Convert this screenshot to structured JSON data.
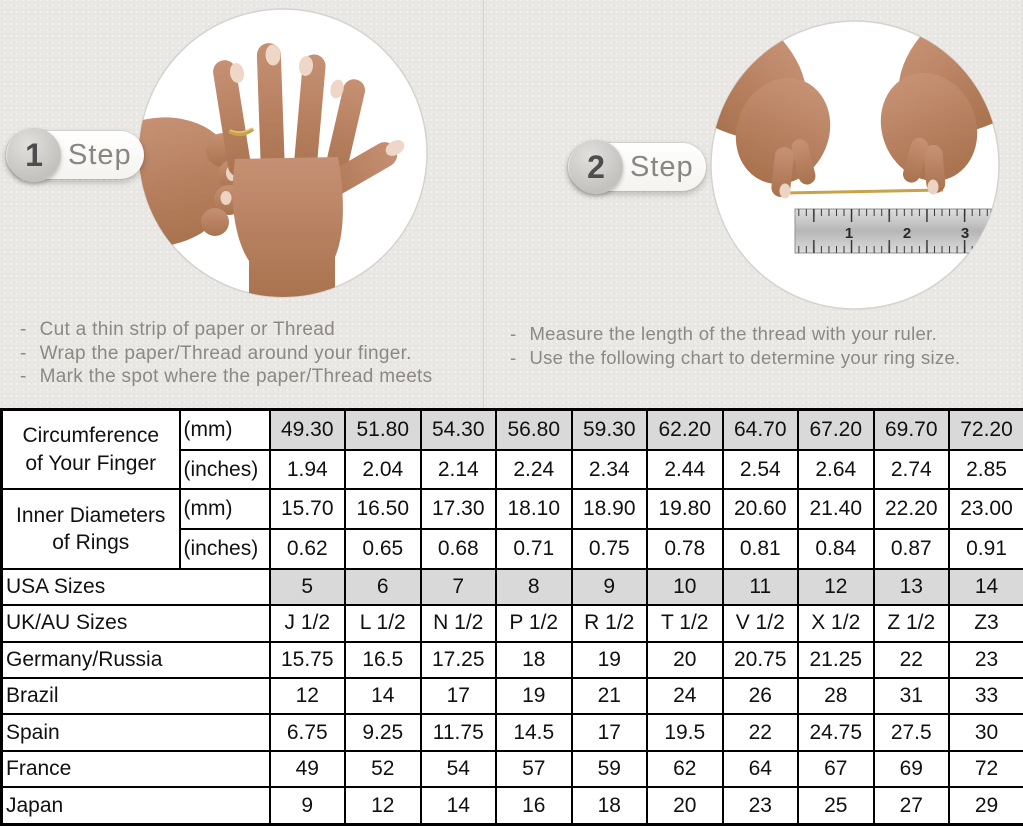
{
  "steps": [
    {
      "number": "1",
      "label": "Step",
      "instructions": [
        "Cut a thin strip of paper or Thread",
        "Wrap the paper/Thread around your finger.",
        "Mark the spot where the paper/Thread meets"
      ]
    },
    {
      "number": "2",
      "label": "Step",
      "instructions": [
        "Measure the length of the thread with your ruler.",
        "Use the following chart to determine your ring size."
      ]
    }
  ],
  "ruler": {
    "numbers": [
      "1",
      "2",
      "3"
    ]
  },
  "size_chart": {
    "row_groups": [
      {
        "label_lines": [
          "Circumference",
          "of Your Finger"
        ],
        "rows": [
          {
            "unit": "(mm)",
            "shaded": true,
            "values": [
              "49.30",
              "51.80",
              "54.30",
              "56.80",
              "59.30",
              "62.20",
              "64.70",
              "67.20",
              "69.70",
              "72.20"
            ]
          },
          {
            "unit": "(inches)",
            "shaded": false,
            "values": [
              "1.94",
              "2.04",
              "2.14",
              "2.24",
              "2.34",
              "2.44",
              "2.54",
              "2.64",
              "2.74",
              "2.85"
            ]
          }
        ]
      },
      {
        "label_lines": [
          "Inner Diameters",
          "of Rings"
        ],
        "rows": [
          {
            "unit": "(mm)",
            "shaded": false,
            "values": [
              "15.70",
              "16.50",
              "17.30",
              "18.10",
              "18.90",
              "19.80",
              "20.60",
              "21.40",
              "22.20",
              "23.00"
            ]
          },
          {
            "unit": "(inches)",
            "shaded": false,
            "values": [
              "0.62",
              "0.65",
              "0.68",
              "0.71",
              "0.75",
              "0.78",
              "0.81",
              "0.84",
              "0.87",
              "0.91"
            ]
          }
        ]
      }
    ],
    "simple_rows": [
      {
        "label": "USA Sizes",
        "shaded": true,
        "values": [
          "5",
          "6",
          "7",
          "8",
          "9",
          "10",
          "11",
          "12",
          "13",
          "14"
        ]
      },
      {
        "label": "UK/AU Sizes",
        "shaded": false,
        "values": [
          "J 1/2",
          "L 1/2",
          "N 1/2",
          "P 1/2",
          "R 1/2",
          "T 1/2",
          "V 1/2",
          "X 1/2",
          "Z 1/2",
          "Z3"
        ]
      },
      {
        "label": "Germany/Russia",
        "shaded": false,
        "values": [
          "15.75",
          "16.5",
          "17.25",
          "18",
          "19",
          "20",
          "20.75",
          "21.25",
          "22",
          "23"
        ]
      },
      {
        "label": "Brazil",
        "shaded": false,
        "values": [
          "12",
          "14",
          "17",
          "19",
          "21",
          "24",
          "26",
          "28",
          "31",
          "33"
        ]
      },
      {
        "label": "Spain",
        "shaded": false,
        "values": [
          "6.75",
          "9.25",
          "11.75",
          "14.5",
          "17",
          "19.5",
          "22",
          "24.75",
          "27.5",
          "30"
        ]
      },
      {
        "label": "France",
        "shaded": false,
        "values": [
          "49",
          "52",
          "54",
          "57",
          "59",
          "62",
          "64",
          "67",
          "69",
          "72"
        ]
      },
      {
        "label": "Japan",
        "shaded": false,
        "values": [
          "9",
          "12",
          "14",
          "16",
          "18",
          "20",
          "23",
          "25",
          "27",
          "29"
        ]
      }
    ]
  },
  "colors": {
    "background": "#eae8e4",
    "table_shaded": "#d9d9d9",
    "table_border": "#000000",
    "thread_gold": "#c9a24a",
    "instruction_text": "#8c8883"
  }
}
